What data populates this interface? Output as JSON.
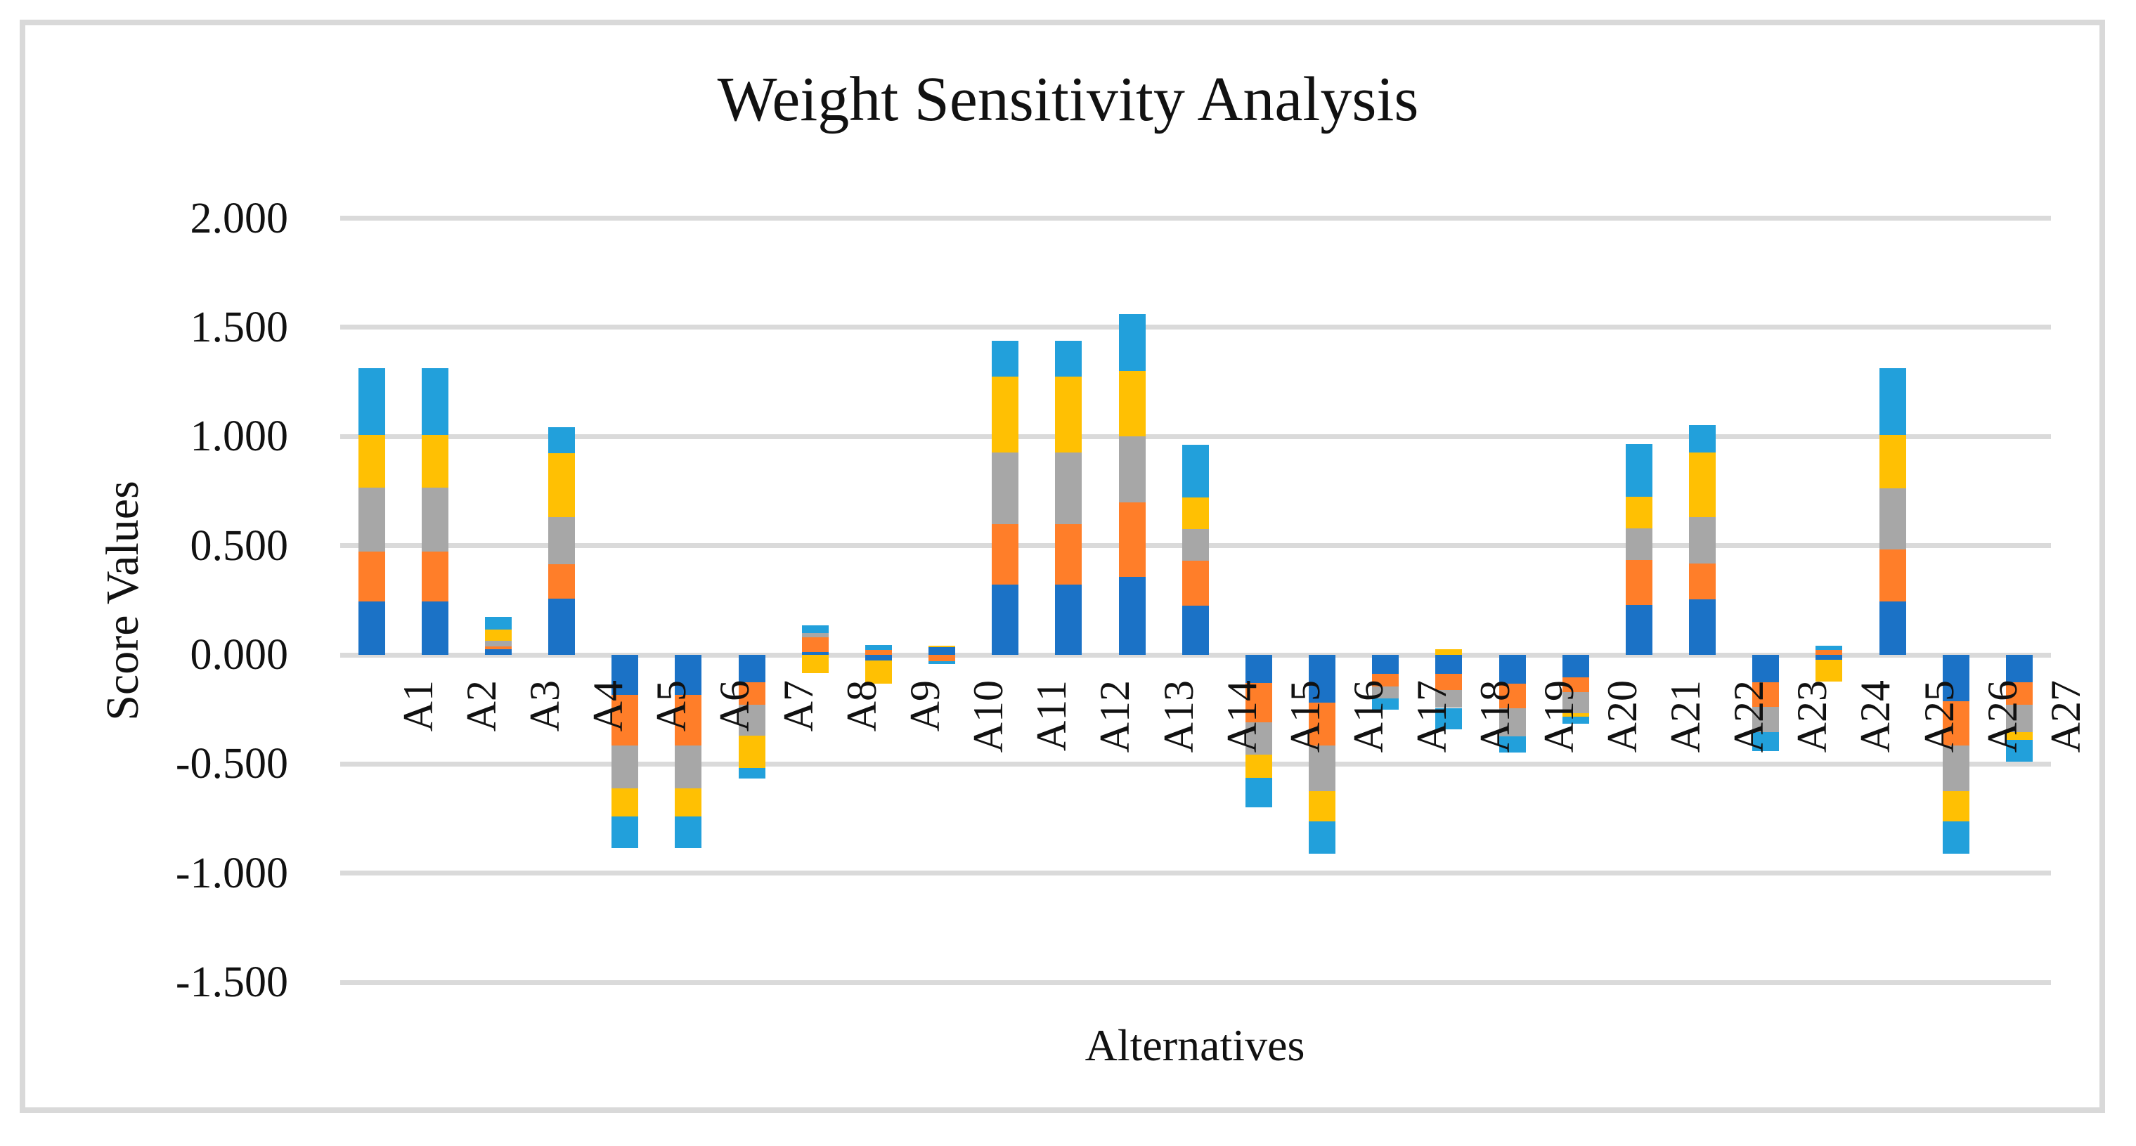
{
  "title": "Weight Sensitivity Analysis",
  "axes": {
    "y_title": "Score Values",
    "x_title": "Alternatives",
    "y_tick_labels": [
      "2.000",
      "1.500",
      "1.000",
      "0.500",
      "0.000",
      "-0.500",
      "-1.000",
      "-1.500"
    ]
  },
  "colors": {
    "series_blue": "#1B72C6",
    "series_orange": "#FF7E29",
    "series_gray": "#A7A7A7",
    "series_yellow": "#FFC003",
    "series_light_blue": "#22A0DB",
    "gridline": "#DADADA",
    "frame_border": "#D9D9D9"
  },
  "chart_data": {
    "type": "bar",
    "stacked": true,
    "title": "Weight Sensitivity Analysis",
    "xlabel": "Alternatives",
    "ylabel": "Score Values",
    "ylim": [
      -1.5,
      2.0
    ],
    "ytick_interval": 0.5,
    "grid": true,
    "legend_position": "none",
    "categories": [
      "A1",
      "A2",
      "A3",
      "A4",
      "A5",
      "A6",
      "A7",
      "A8",
      "A9",
      "A10",
      "A11",
      "A12",
      "A13",
      "A14",
      "A15",
      "A16",
      "A17",
      "A18",
      "A19",
      "A20",
      "A21",
      "A22",
      "A23",
      "A24",
      "A25",
      "A26",
      "A27"
    ],
    "series": [
      {
        "name": "blue",
        "color": "#1B72C6",
        "values": [
          0.244,
          0.244,
          0.026,
          0.259,
          -0.184,
          -0.184,
          -0.126,
          0.012,
          -0.026,
          0.034,
          0.321,
          0.321,
          0.358,
          0.224,
          -0.13,
          -0.22,
          -0.086,
          -0.088,
          -0.133,
          -0.104,
          0.23,
          0.254,
          -0.126,
          -0.022,
          0.243,
          -0.212,
          -0.125
        ]
      },
      {
        "name": "orange",
        "color": "#FF7E29",
        "values": [
          0.23,
          0.23,
          0.013,
          0.156,
          -0.232,
          -0.232,
          -0.103,
          0.068,
          0.024,
          -0.03,
          0.279,
          0.279,
          0.342,
          0.206,
          -0.18,
          -0.196,
          -0.06,
          -0.072,
          -0.113,
          -0.067,
          0.204,
          0.164,
          -0.112,
          0.021,
          0.24,
          -0.203,
          -0.105
        ]
      },
      {
        "name": "gray",
        "color": "#A7A7A7",
        "values": [
          0.291,
          0.291,
          0.024,
          0.217,
          -0.197,
          -0.197,
          -0.142,
          0.02,
          0.0,
          0.0,
          0.326,
          0.326,
          0.3,
          0.147,
          -0.146,
          -0.209,
          -0.055,
          -0.083,
          -0.127,
          -0.097,
          0.146,
          0.214,
          -0.115,
          0.0,
          0.281,
          -0.211,
          -0.123
        ]
      },
      {
        "name": "yellow",
        "color": "#FFC003",
        "values": [
          0.242,
          0.242,
          0.052,
          0.291,
          -0.126,
          -0.126,
          -0.148,
          -0.085,
          -0.105,
          0.009,
          0.347,
          0.347,
          0.3,
          0.145,
          -0.106,
          -0.137,
          0.0,
          0.025,
          0.0,
          -0.016,
          0.145,
          0.294,
          0.0,
          -0.1,
          0.243,
          -0.137,
          -0.038
        ]
      },
      {
        "name": "light-blue",
        "color": "#22A0DB",
        "values": [
          0.305,
          0.305,
          0.058,
          0.121,
          -0.145,
          -0.145,
          -0.046,
          0.034,
          0.02,
          -0.011,
          0.167,
          0.167,
          0.262,
          0.24,
          -0.137,
          -0.148,
          -0.049,
          -0.099,
          -0.074,
          -0.032,
          0.241,
          0.125,
          -0.088,
          0.021,
          0.305,
          -0.147,
          -0.098
        ]
      }
    ],
    "stack_totals_positive": [
      1.312,
      1.312,
      0.173,
      1.044,
      0,
      0,
      0,
      0.134,
      0.044,
      0.043,
      1.44,
      1.44,
      1.562,
      0.962,
      0,
      0,
      0,
      0.025,
      0,
      0,
      0.966,
      1.051,
      0,
      0.042,
      1.312,
      0,
      0
    ],
    "stack_totals_negative": [
      0,
      0,
      0,
      0,
      -0.884,
      -0.884,
      -0.565,
      -0.085,
      -0.131,
      -0.041,
      0,
      0,
      0,
      0,
      -0.699,
      -0.91,
      -0.25,
      -0.342,
      -0.447,
      -0.316,
      0,
      0,
      -0.441,
      -0.122,
      0,
      -0.91,
      -0.489
    ]
  }
}
